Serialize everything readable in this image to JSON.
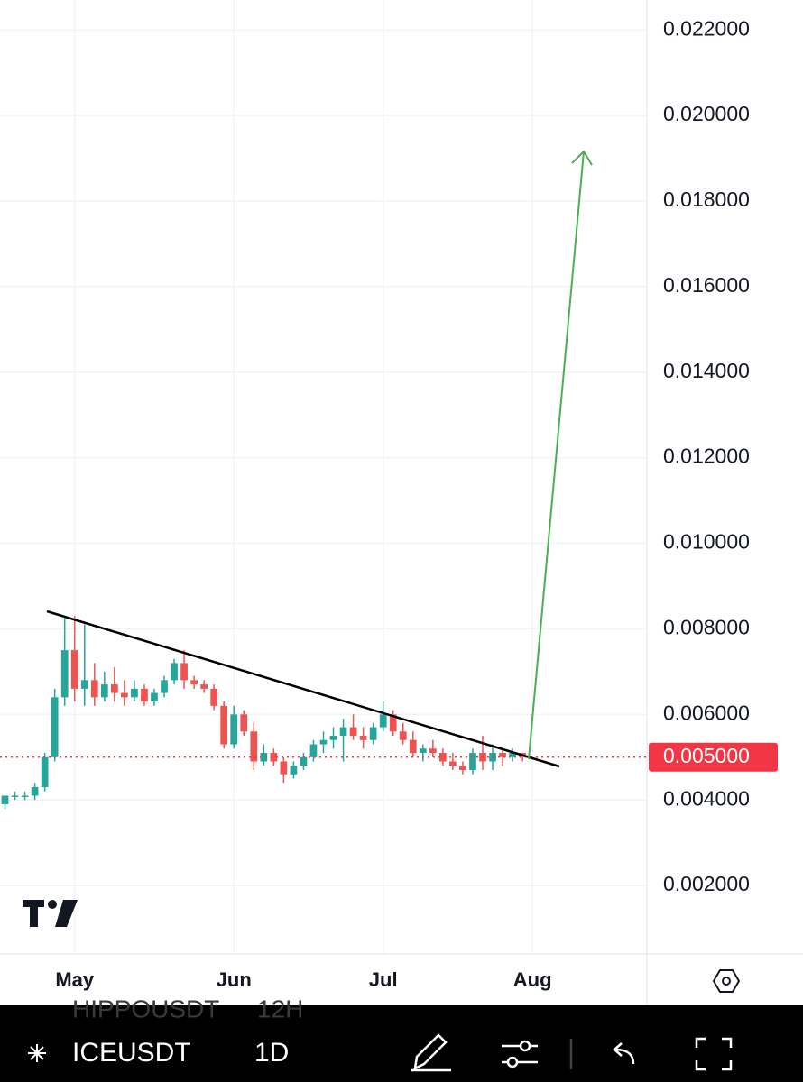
{
  "chart_data": {
    "type": "candlestick",
    "categories": [
      null,
      null,
      null,
      null,
      null,
      null,
      null,
      "May",
      null,
      null,
      null,
      null,
      null,
      null,
      null,
      null,
      null,
      null,
      null,
      null,
      null,
      null,
      null,
      "Jun",
      null,
      null,
      null,
      null,
      null,
      null,
      null,
      null,
      null,
      null,
      null,
      null,
      null,
      null,
      "Jul",
      null,
      null,
      null,
      null,
      null,
      null,
      null,
      null,
      null,
      null,
      null,
      null,
      null,
      null,
      "Aug",
      null,
      null,
      null,
      null,
      null,
      null,
      null,
      null,
      null,
      null,
      null
    ],
    "open": [
      0.0039,
      0.0041,
      0.0041,
      0.0041,
      0.0043,
      0.005,
      0.0064,
      0.0075,
      0.0066,
      0.0068,
      0.0064,
      0.0067,
      0.0065,
      0.0064,
      0.0066,
      0.0063,
      0.0065,
      0.0068,
      0.0072,
      0.0068,
      0.0067,
      0.0066,
      0.0062,
      0.0053,
      0.006,
      0.0056,
      0.0049,
      0.0051,
      0.0049,
      0.0046,
      0.0048,
      0.005,
      0.0053,
      0.0054,
      0.0055,
      0.0057,
      0.0055,
      0.0054,
      0.0057,
      0.006,
      0.0056,
      0.0054,
      0.0051,
      0.0052,
      0.0051,
      0.0049,
      0.0048,
      0.0047,
      0.0051,
      0.0049,
      0.0051,
      0.005,
      0.0051,
      null,
      null,
      null,
      null,
      null,
      null,
      null,
      null,
      null,
      null,
      null,
      null
    ],
    "high": [
      0.0041,
      0.0042,
      0.0042,
      0.0044,
      0.0051,
      0.0066,
      0.0083,
      0.0083,
      0.0081,
      0.0072,
      0.007,
      0.0071,
      0.0068,
      0.0068,
      0.0067,
      0.0066,
      0.0069,
      0.0073,
      0.0075,
      0.0069,
      0.0068,
      0.0067,
      0.0063,
      0.0062,
      0.0061,
      0.0058,
      0.0053,
      0.0052,
      0.005,
      0.0049,
      0.0051,
      0.0054,
      0.0056,
      0.0057,
      0.0059,
      0.006,
      0.0057,
      0.0058,
      0.0063,
      0.0061,
      0.0058,
      0.0056,
      0.0053,
      0.0054,
      0.0052,
      0.0051,
      0.0049,
      0.0052,
      0.0055,
      0.0053,
      0.0052,
      0.0052,
      0.0051,
      null,
      null,
      null,
      null,
      null,
      null,
      null,
      null,
      null,
      null,
      null,
      null
    ],
    "low": [
      0.0038,
      0.004,
      0.004,
      0.004,
      0.0042,
      0.0049,
      0.0062,
      0.0063,
      0.0062,
      0.0062,
      0.0063,
      0.0063,
      0.0062,
      0.0063,
      0.0062,
      0.0062,
      0.0064,
      0.0067,
      0.0066,
      0.0066,
      0.0065,
      0.0061,
      0.0052,
      0.0052,
      0.0055,
      0.0047,
      0.0048,
      0.0048,
      0.0044,
      0.0045,
      0.0047,
      0.0049,
      0.0051,
      0.0052,
      0.0049,
      0.0054,
      0.0052,
      0.0053,
      0.0056,
      0.0055,
      0.0053,
      0.005,
      0.0049,
      0.005,
      0.0048,
      0.0047,
      0.0046,
      0.0046,
      0.0047,
      0.0047,
      0.0048,
      0.0049,
      0.0049,
      null,
      null,
      null,
      null,
      null,
      null,
      null,
      null,
      null,
      null,
      null,
      null
    ],
    "close": [
      0.0041,
      0.0041,
      0.0041,
      0.0043,
      0.005,
      0.0064,
      0.0075,
      0.0066,
      0.0068,
      0.0064,
      0.0067,
      0.0065,
      0.0064,
      0.0066,
      0.0063,
      0.0065,
      0.0068,
      0.0072,
      0.0068,
      0.0067,
      0.0066,
      0.0062,
      0.0053,
      0.006,
      0.0056,
      0.0049,
      0.0051,
      0.0049,
      0.0046,
      0.0048,
      0.005,
      0.0053,
      0.0054,
      0.0055,
      0.0057,
      0.0055,
      0.0054,
      0.0057,
      0.006,
      0.0056,
      0.0054,
      0.0051,
      0.0052,
      0.0051,
      0.0049,
      0.0048,
      0.0047,
      0.0051,
      0.0049,
      0.0051,
      0.005,
      0.0051,
      0.005,
      null,
      null,
      null,
      null,
      null,
      null,
      null,
      null,
      null,
      null,
      null,
      null
    ],
    "up_color": "#26a69a",
    "down_color": "#ef5350",
    "ylim": [
      0.0004,
      0.0227
    ],
    "yticks": [
      {
        "value": 0.002,
        "label": "0.002000"
      },
      {
        "value": 0.004,
        "label": "0.004000"
      },
      {
        "value": 0.006,
        "label": "0.006000"
      },
      {
        "value": 0.008,
        "label": "0.008000"
      },
      {
        "value": 0.01,
        "label": "0.010000"
      },
      {
        "value": 0.012,
        "label": "0.012000"
      },
      {
        "value": 0.014,
        "label": "0.014000"
      },
      {
        "value": 0.016,
        "label": "0.016000"
      },
      {
        "value": 0.018,
        "label": "0.018000"
      },
      {
        "value": 0.02,
        "label": "0.020000"
      },
      {
        "value": 0.022,
        "label": "0.022000"
      }
    ],
    "price_line": {
      "value": 0.005,
      "label": "0.005000",
      "color": "#f23645"
    },
    "grid": true
  },
  "toolbar": {
    "symbol": "ICEUSDT",
    "interval": "1D",
    "overlay_symbol": "HIPPOUSDT",
    "overlay_interval": "12H"
  }
}
